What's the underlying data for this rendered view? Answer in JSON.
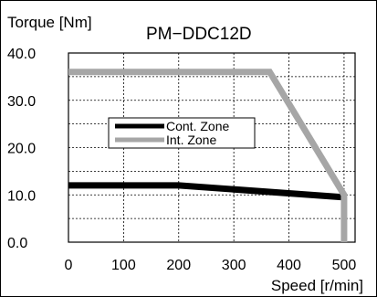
{
  "chart_data": {
    "type": "line",
    "title": "PM−DDC12D",
    "xlabel": "Speed [r/min]",
    "ylabel": "Torque [Nm]",
    "xlim": [
      0,
      520
    ],
    "ylim": [
      0,
      40
    ],
    "x_ticks": [
      0,
      100,
      200,
      300,
      400,
      500
    ],
    "x_tick_labels": [
      "0",
      "100",
      "200",
      "300",
      "400",
      "500"
    ],
    "y_ticks": [
      0,
      10,
      20,
      30,
      40
    ],
    "y_tick_labels": [
      "0.0",
      "10.0",
      "20.0",
      "30.0",
      "40.0"
    ],
    "grid": true,
    "legend_position": "center-left",
    "series": [
      {
        "name": "Cont. Zone",
        "color": "#000000",
        "points": [
          [
            0,
            12
          ],
          [
            200,
            12
          ],
          [
            500,
            9.5
          ]
        ]
      },
      {
        "name": "Int. Zone",
        "color": "#a6a6a6",
        "points": [
          [
            0,
            36
          ],
          [
            365,
            36
          ],
          [
            500,
            10
          ],
          [
            500,
            0
          ]
        ]
      }
    ]
  }
}
